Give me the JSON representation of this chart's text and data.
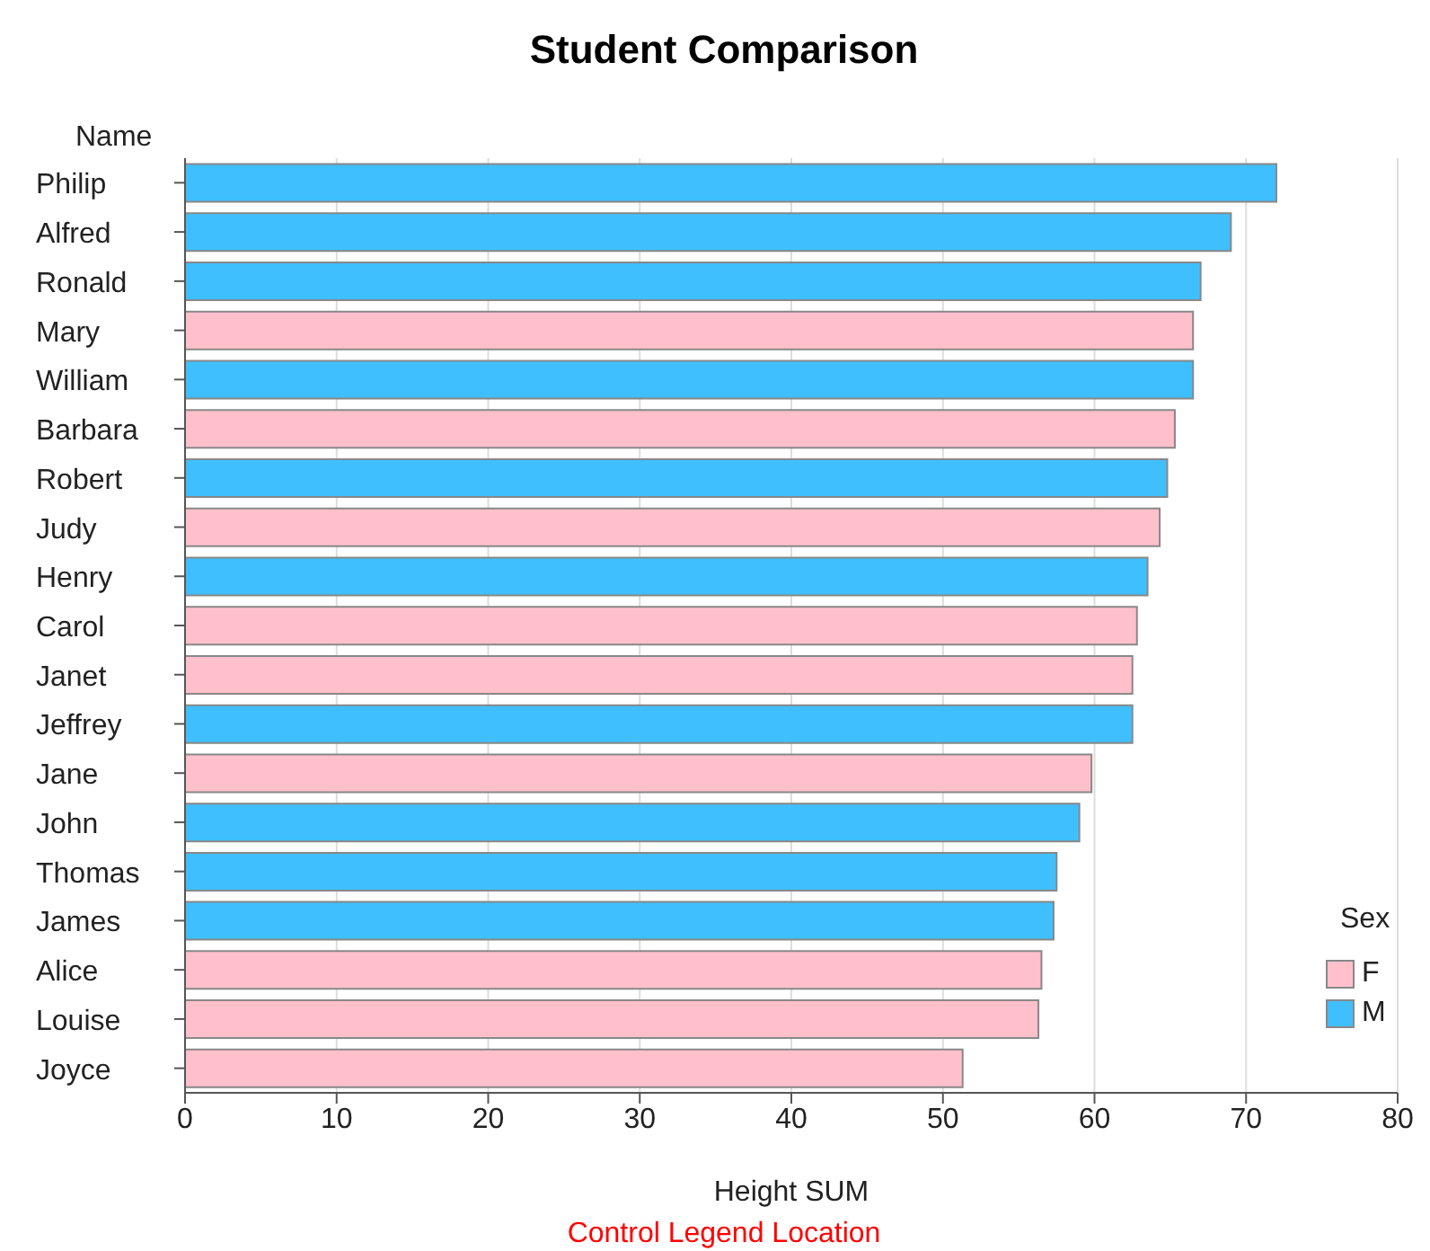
{
  "chart_data": {
    "type": "bar",
    "orientation": "horizontal",
    "stacked": true,
    "title": "Student Comparison",
    "ylabel": "Name",
    "xlabel": "Height SUM",
    "legend_title": "Sex",
    "legend": "bottom right",
    "grid": "x",
    "categories": [
      "Philip",
      "Alfred",
      "Ronald",
      "Mary",
      "William",
      "Barbara",
      "Robert",
      "Judy",
      "Henry",
      "Carol",
      "Janet",
      "Jeffrey",
      "Jane",
      "John",
      "Thomas",
      "James",
      "Alice",
      "Louise",
      "Joyce"
    ],
    "series": [
      {
        "name": "F",
        "color": "#ffc0cb",
        "values": [
          null,
          null,
          null,
          66.5,
          null,
          65.3,
          null,
          64.3,
          null,
          62.8,
          62.5,
          null,
          59.8,
          null,
          null,
          null,
          56.5,
          56.3,
          51.3
        ]
      },
      {
        "name": "M",
        "color": "#40bfff",
        "values": [
          72,
          69,
          67,
          null,
          66.5,
          null,
          64.8,
          null,
          63.5,
          null,
          null,
          62.5,
          null,
          59,
          57.5,
          57.3,
          null,
          null,
          null
        ]
      }
    ],
    "xlim": [
      0,
      80
    ],
    "xticks": [
      0,
      10,
      20,
      30,
      40,
      50,
      60,
      70,
      80
    ],
    "annotations": [
      "Control Legend Location"
    ]
  }
}
